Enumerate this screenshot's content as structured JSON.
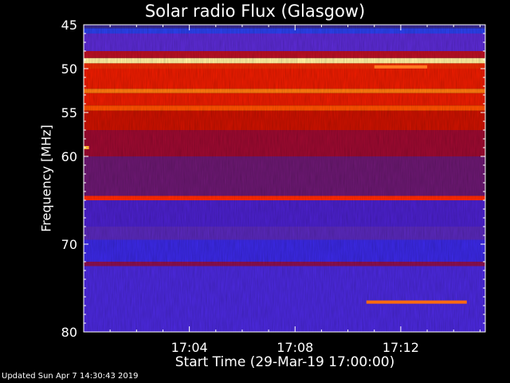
{
  "chart_data": {
    "type": "heatmap",
    "title": "Solar radio Flux (Glasgow)",
    "xlabel": "Start Time (29-Mar-19 17:00:00)",
    "ylabel": "Frequency [MHz]",
    "x_ticks": [
      "17:04",
      "17:08",
      "17:12"
    ],
    "x_tick_minutes": [
      4,
      8,
      12
    ],
    "xlim_minutes": [
      0,
      15.2
    ],
    "y_ticks": [
      45,
      50,
      55,
      60,
      70,
      80
    ],
    "ylim": [
      45,
      80
    ],
    "background_colors": {
      "low": "#4a1fd6",
      "mid": "#8a1070",
      "high": "#e01a00"
    },
    "bands": [
      {
        "from": 45.0,
        "to": 45.4,
        "color": "#3a2a90"
      },
      {
        "from": 45.4,
        "to": 46.0,
        "color": "#2b3fe8"
      },
      {
        "from": 46.0,
        "to": 48.0,
        "color": "#5a2ad0"
      },
      {
        "from": 48.0,
        "to": 48.8,
        "color": "#b81024"
      },
      {
        "from": 48.8,
        "to": 49.4,
        "color": "#fff0a0"
      },
      {
        "from": 49.4,
        "to": 50.0,
        "color": "#e82a00"
      },
      {
        "from": 50.0,
        "to": 52.3,
        "color": "#e81c00"
      },
      {
        "from": 52.3,
        "to": 52.8,
        "color": "#ff7a10"
      },
      {
        "from": 52.8,
        "to": 54.2,
        "color": "#e81c00"
      },
      {
        "from": 54.2,
        "to": 54.8,
        "color": "#ff5000"
      },
      {
        "from": 54.8,
        "to": 57.0,
        "color": "#c81200"
      },
      {
        "from": 57.0,
        "to": 60.0,
        "color": "#9a0a30"
      },
      {
        "from": 60.0,
        "to": 64.5,
        "color": "#6a1870"
      },
      {
        "from": 64.5,
        "to": 65.0,
        "color": "#ff2a00"
      },
      {
        "from": 65.0,
        "to": 68.0,
        "color": "#4a20c8"
      },
      {
        "from": 68.0,
        "to": 69.5,
        "color": "#5828b8"
      },
      {
        "from": 69.5,
        "to": 72.0,
        "color": "#3a28e0"
      },
      {
        "from": 72.0,
        "to": 72.5,
        "color": "#8a1050"
      },
      {
        "from": 72.5,
        "to": 80.0,
        "color": "#4a28d8"
      }
    ],
    "features": [
      {
        "t0": 10.7,
        "t1": 14.5,
        "f": 76.6,
        "color": "#ff6a10"
      },
      {
        "t0": 11.0,
        "t1": 13.0,
        "f": 49.8,
        "color": "#ff7a20"
      },
      {
        "t0": 0.0,
        "t1": 0.2,
        "f": 59.0,
        "color": "#ffb030"
      }
    ]
  },
  "footer": "Updated Sun Apr  7 14:30:43 2019"
}
